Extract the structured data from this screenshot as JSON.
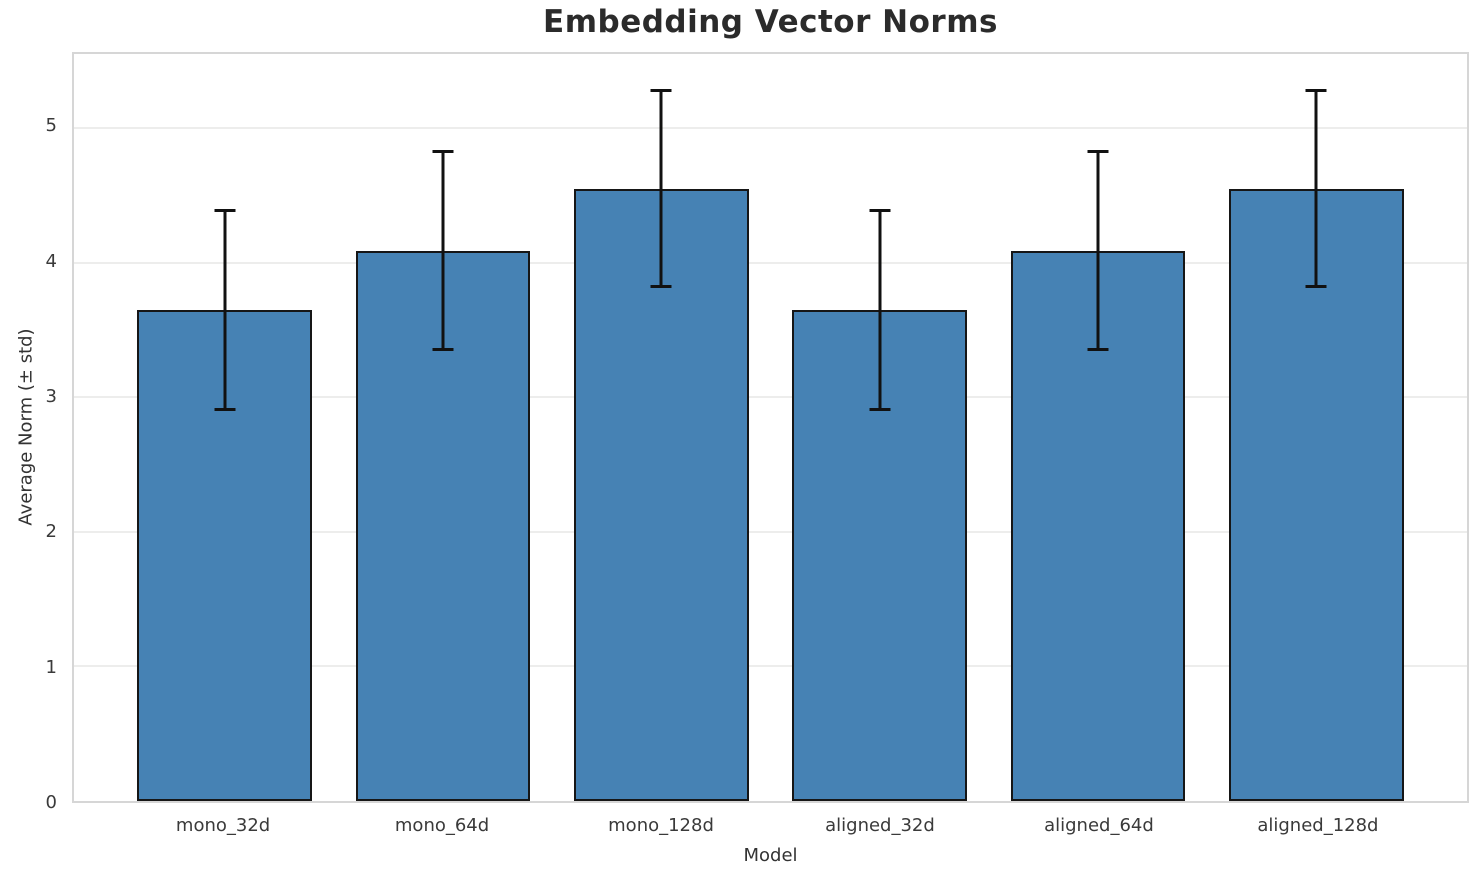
{
  "chart_data": {
    "type": "bar",
    "title": "Embedding Vector Norms",
    "xlabel": "Model",
    "ylabel": "Average Norm (± std)",
    "categories": [
      "mono_32d",
      "mono_64d",
      "mono_128d",
      "aligned_32d",
      "aligned_64d",
      "aligned_128d"
    ],
    "series": [
      {
        "name": "Average Norm",
        "values": [
          3.65,
          4.09,
          4.55,
          3.65,
          4.09,
          4.55
        ],
        "errors": [
          0.75,
          0.75,
          0.74,
          0.75,
          0.75,
          0.74
        ]
      }
    ],
    "ylim": [
      0,
      5.55
    ],
    "yticks": [
      0,
      1,
      2,
      3,
      4,
      5
    ],
    "grid": true,
    "legend": "none",
    "error_caps": true,
    "colors": {
      "bar_fill": "#4682B4",
      "bar_edge": "#161616",
      "error_bar": "#111111",
      "grid_line": "#ededec",
      "spine": "#d6d6d6",
      "tick_text": "#3a3a3a",
      "title_text": "#2b2b2b",
      "background": "#ffffff"
    }
  }
}
